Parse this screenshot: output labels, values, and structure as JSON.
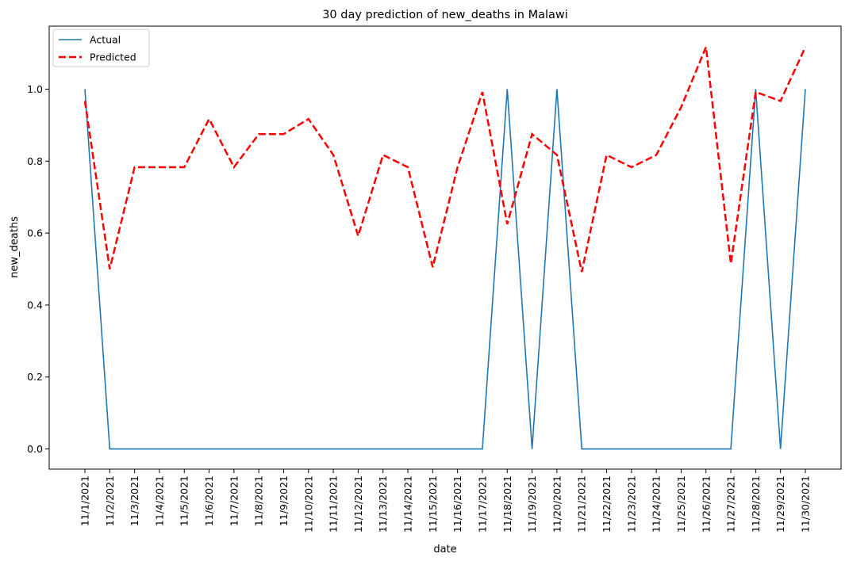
{
  "chart_data": {
    "type": "line",
    "title": "30 day prediction of new_deaths in Malawi",
    "xlabel": "date",
    "ylabel": "new_deaths",
    "ylim": [
      -0.056,
      1.175
    ],
    "yticks": [
      "0.0",
      "0.2",
      "0.4",
      "0.6",
      "0.8",
      "1.0"
    ],
    "ytick_values": [
      0.0,
      0.2,
      0.4,
      0.6,
      0.8,
      1.0
    ],
    "x": [
      "11/1/2021",
      "11/2/2021",
      "11/3/2021",
      "11/4/2021",
      "11/5/2021",
      "11/6/2021",
      "11/7/2021",
      "11/8/2021",
      "11/9/2021",
      "11/10/2021",
      "11/11/2021",
      "11/12/2021",
      "11/13/2021",
      "11/14/2021",
      "11/15/2021",
      "11/16/2021",
      "11/17/2021",
      "11/18/2021",
      "11/19/2021",
      "11/20/2021",
      "11/21/2021",
      "11/22/2021",
      "11/23/2021",
      "11/24/2021",
      "11/25/2021",
      "11/26/2021",
      "11/27/2021",
      "11/28/2021",
      "11/29/2021",
      "11/30/2021"
    ],
    "series": [
      {
        "name": "Actual",
        "color": "#1f77b4",
        "style": "solid",
        "values": [
          1,
          0,
          0,
          0,
          0,
          0,
          0,
          0,
          0,
          0,
          0,
          0,
          0,
          0,
          0,
          0,
          0,
          1,
          0,
          1,
          0,
          0,
          0,
          0,
          0,
          0,
          0,
          1,
          0,
          1
        ]
      },
      {
        "name": "Predicted",
        "color": "#ff0000",
        "style": "dashed",
        "values": [
          0.967,
          0.5,
          0.783,
          0.783,
          0.783,
          0.917,
          0.783,
          0.875,
          0.875,
          0.917,
          0.817,
          0.592,
          0.817,
          0.783,
          0.505,
          0.783,
          0.992,
          0.625,
          0.875,
          0.817,
          0.492,
          0.817,
          0.783,
          0.817,
          0.95,
          1.117,
          0.515,
          0.992,
          0.967,
          1.117
        ]
      }
    ],
    "legend_position": "top-left",
    "grid": false
  }
}
